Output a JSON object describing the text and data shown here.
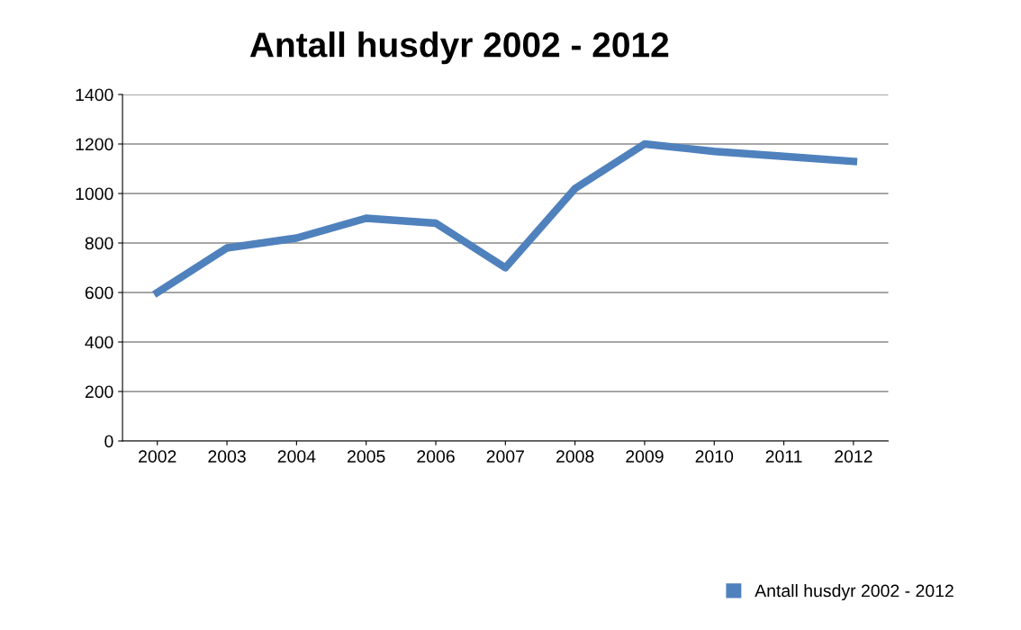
{
  "chart_data": {
    "type": "line",
    "title": "Antall husdyr 2002 - 2012",
    "categories": [
      "2002",
      "2003",
      "2004",
      "2005",
      "2006",
      "2007",
      "2008",
      "2009",
      "2010",
      "2011",
      "2012"
    ],
    "series": [
      {
        "name": "Antall husdyr 2002 - 2012",
        "color": "#4f81bd",
        "values": [
          600,
          780,
          820,
          900,
          880,
          700,
          1020,
          1200,
          1170,
          1150,
          1130
        ]
      }
    ],
    "ylim": [
      0,
      1400
    ],
    "yticks": [
      0,
      200,
      400,
      600,
      800,
      1000,
      1200,
      1400
    ],
    "grid": "y",
    "legend": "bottom right",
    "marker": "none",
    "line_style": "solid"
  }
}
